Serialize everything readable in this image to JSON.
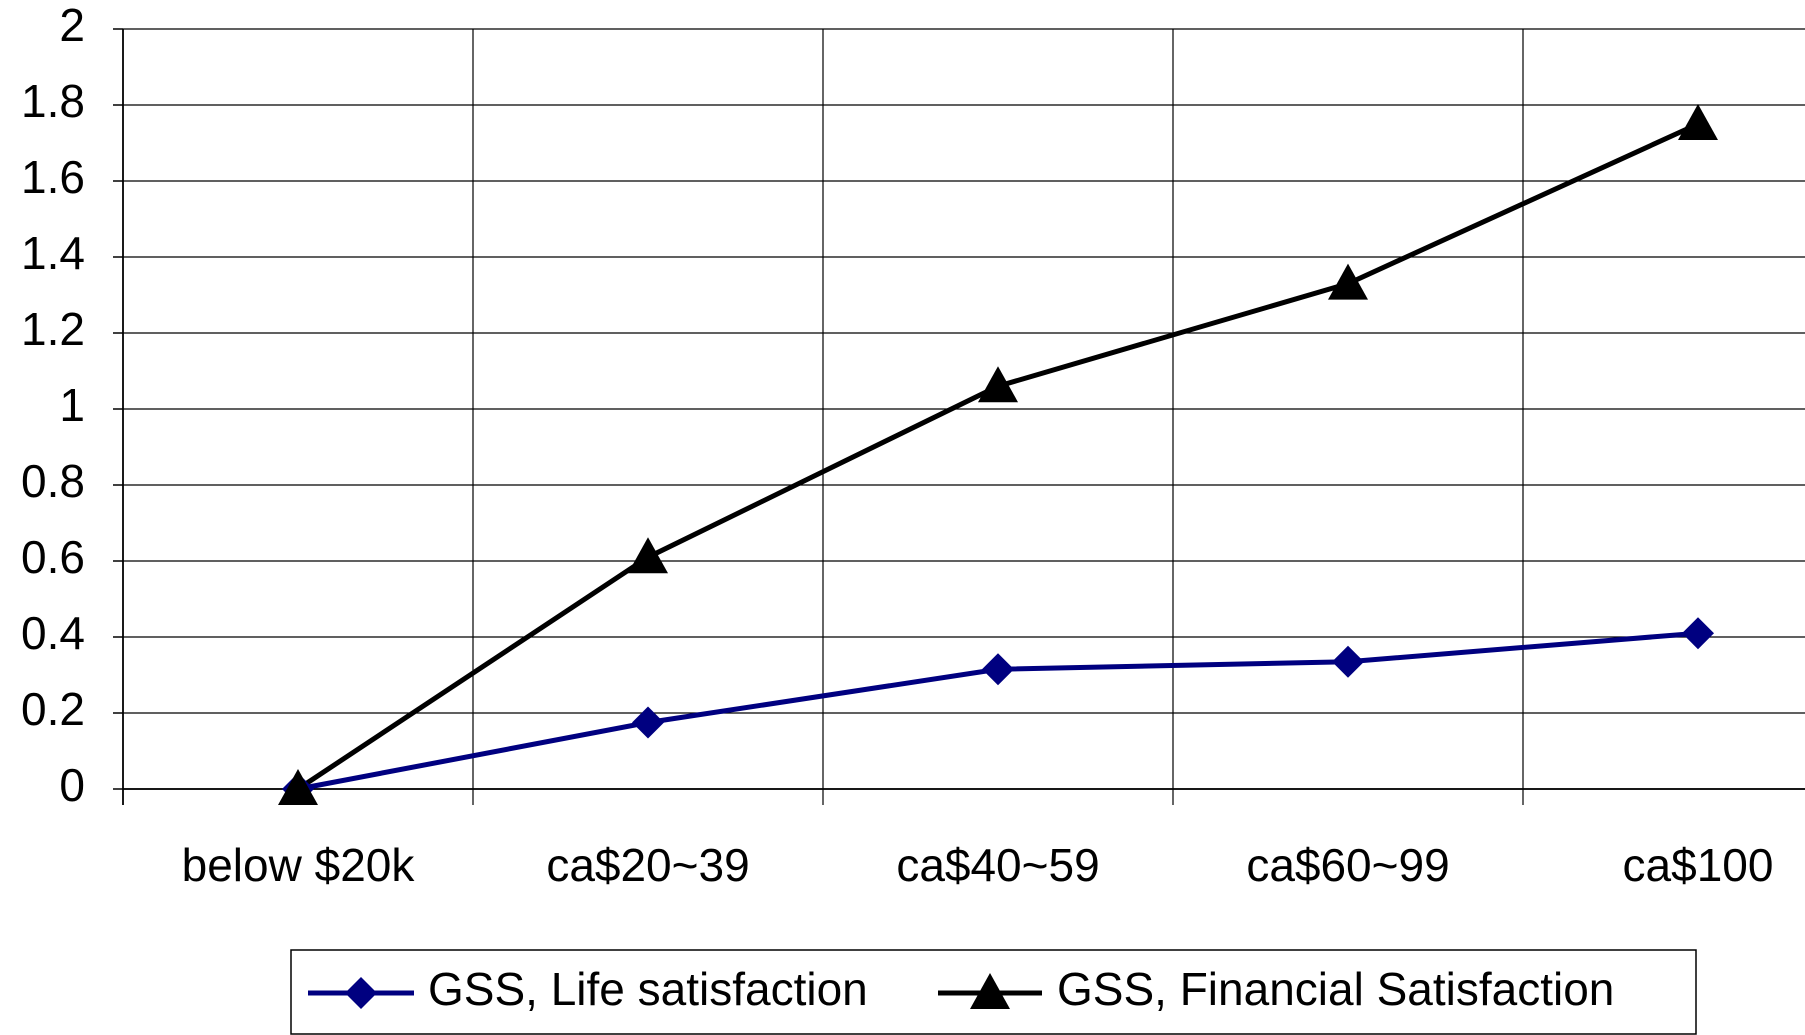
{
  "chart_data": {
    "type": "line",
    "categories": [
      "below $20k",
      "ca$20~39",
      "ca$40~59",
      "ca$60~99",
      "ca$100"
    ],
    "series": [
      {
        "name": "GSS, Life satisfaction",
        "color": "#000080",
        "marker": "diamond",
        "values": [
          0,
          0.175,
          0.315,
          0.335,
          0.41
        ]
      },
      {
        "name": "GSS, Financial Satisfaction",
        "color": "#000000",
        "marker": "triangle",
        "values": [
          0,
          0.61,
          1.06,
          1.33,
          1.75
        ]
      }
    ],
    "ylim": [
      0,
      2
    ],
    "yticks": [
      0,
      0.2,
      0.4,
      0.6,
      0.8,
      1,
      1.2,
      1.4,
      1.6,
      1.8,
      2
    ],
    "grid": true,
    "legend": "bottom"
  }
}
